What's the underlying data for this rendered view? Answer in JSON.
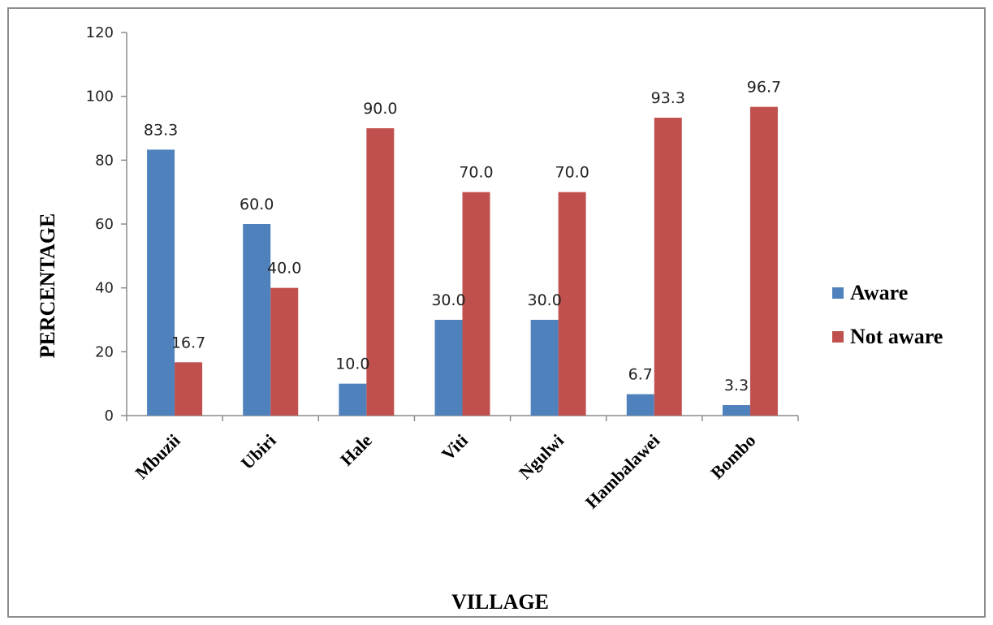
{
  "chart_data": {
    "type": "bar",
    "categories": [
      "Mbuzii",
      "Ubiri",
      "Hale",
      "Viti",
      "Ngulwi",
      "Hambalawei",
      "Bombo"
    ],
    "series": [
      {
        "name": "Aware",
        "color": "#4f81bd",
        "values": [
          83.3,
          60.0,
          10.0,
          30.0,
          30.0,
          6.7,
          3.3
        ],
        "labels": [
          "83.3",
          "60.0",
          "10.0",
          "30.0",
          "30.0",
          "6.7",
          "3.3"
        ]
      },
      {
        "name": "Not aware",
        "color": "#c0504d",
        "values": [
          16.7,
          40.0,
          90.0,
          70.0,
          70.0,
          93.3,
          96.7
        ],
        "labels": [
          "16.7",
          "40.0",
          "90.0",
          "70.0",
          "70.0",
          "93.3",
          "96.7"
        ]
      }
    ],
    "title": "",
    "xlabel": "VILLAGE",
    "ylabel": "PERCENTAGE",
    "ylim": [
      0,
      120
    ],
    "yticks": [
      "0",
      "20",
      "40",
      "60",
      "80",
      "100",
      "120"
    ],
    "grid": false,
    "legend": "right"
  }
}
